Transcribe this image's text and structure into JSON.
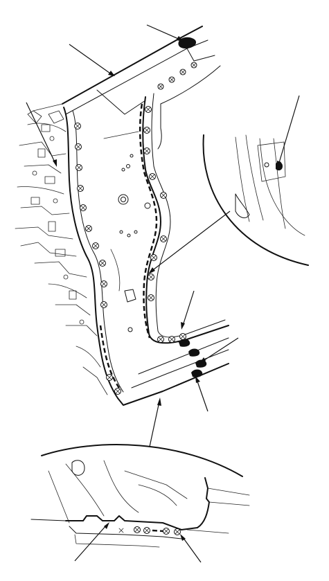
{
  "figure": {
    "description_labels": [],
    "legend": [
      {
        "name": "seam-sealer",
        "symbol": "dashed-line"
      },
      {
        "name": "spot-weld",
        "symbol": "crossed-circle"
      },
      {
        "name": "sealer-bead",
        "symbol": "filled-blob"
      }
    ]
  }
}
